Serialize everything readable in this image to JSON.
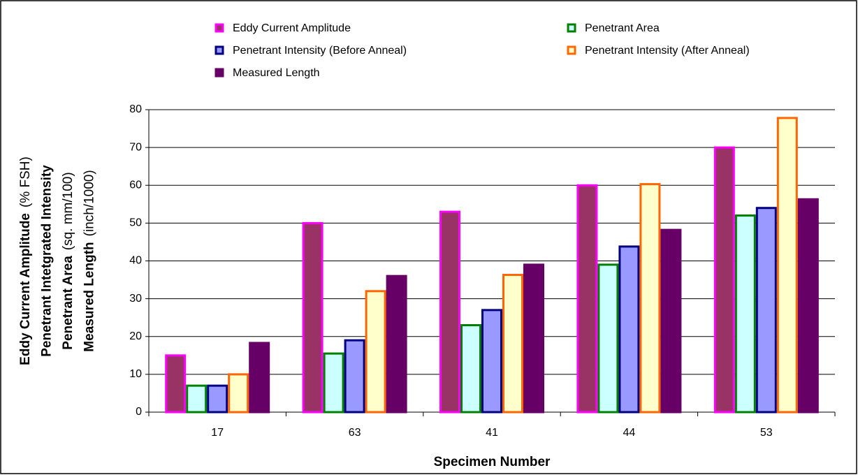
{
  "chart_data": {
    "type": "bar",
    "y_label": [
      [
        "Eddy Current Amplitude",
        "(% FSH)"
      ],
      [
        "Penetrant Intetgrated Intensity"
      ],
      [
        "Penetrant Area",
        "(sq. mm/100)"
      ],
      [
        "Measured Length",
        "(inch/1000)"
      ]
    ],
    "x_label": "Specimen Number",
    "categories": [
      "17",
      "63",
      "41",
      "44",
      "53"
    ],
    "series": [
      {
        "name": "Eddy Current Amplitude",
        "color": "#993366",
        "stroke": "#ff00ff",
        "values": [
          15,
          50,
          53,
          60,
          70
        ]
      },
      {
        "name": "Penetrant Area",
        "color": "#ccffff",
        "stroke": "#008000",
        "values": [
          7,
          15.5,
          23,
          39,
          52
        ]
      },
      {
        "name": "Penetrant Intensity (Before Anneal)",
        "color": "#9999ff",
        "stroke": "#000080",
        "values": [
          7,
          19,
          27,
          43.8,
          54
        ]
      },
      {
        "name": "Penetrant Intensity (After Anneal)",
        "color": "#ffffcc",
        "stroke": "#ff6600",
        "values": [
          10,
          32,
          36.3,
          60.3,
          77.8
        ]
      },
      {
        "name": "Measured Length",
        "color": "#660066",
        "stroke": "#660066",
        "values": [
          18.3,
          36,
          39,
          48.2,
          56.3
        ]
      }
    ],
    "legend_order": [
      0,
      1,
      2,
      3,
      4
    ],
    "ylim": [
      0,
      80
    ],
    "yticks": [
      0,
      10,
      20,
      30,
      40,
      50,
      60,
      70,
      80
    ],
    "grid": true
  }
}
